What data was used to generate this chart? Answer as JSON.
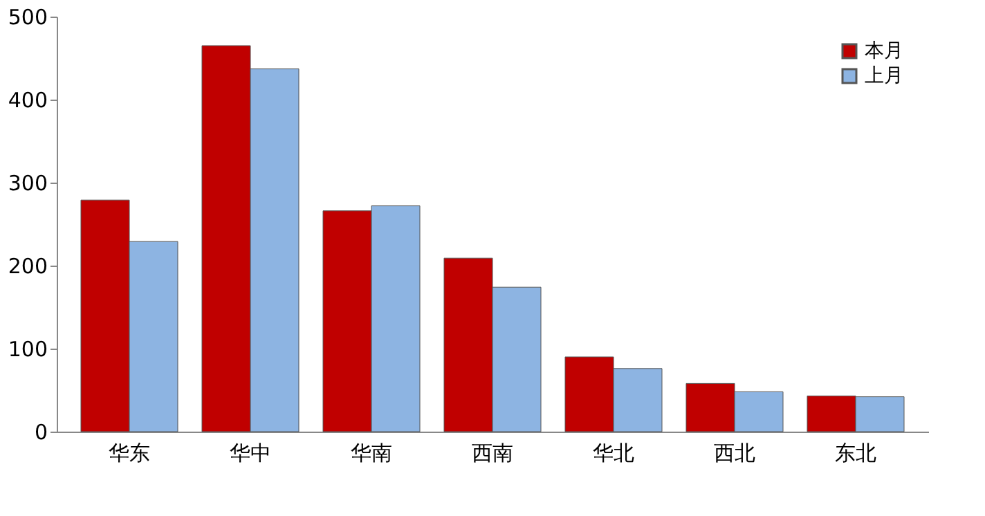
{
  "chart_data": {
    "type": "bar",
    "categories": [
      "华东",
      "华中",
      "华南",
      "西南",
      "华北",
      "西北",
      "东北"
    ],
    "series": [
      {
        "name": "本月",
        "color": "#c00000",
        "values": [
          279,
          465,
          266,
          209,
          90,
          58,
          43
        ]
      },
      {
        "name": "上月",
        "color": "#8db4e2",
        "values": [
          229,
          437,
          272,
          174,
          76,
          48,
          42
        ]
      }
    ],
    "ylim": [
      0,
      500
    ],
    "yticks": [
      0,
      100,
      200,
      300,
      400,
      500
    ],
    "grid": false,
    "legend": "top right"
  }
}
